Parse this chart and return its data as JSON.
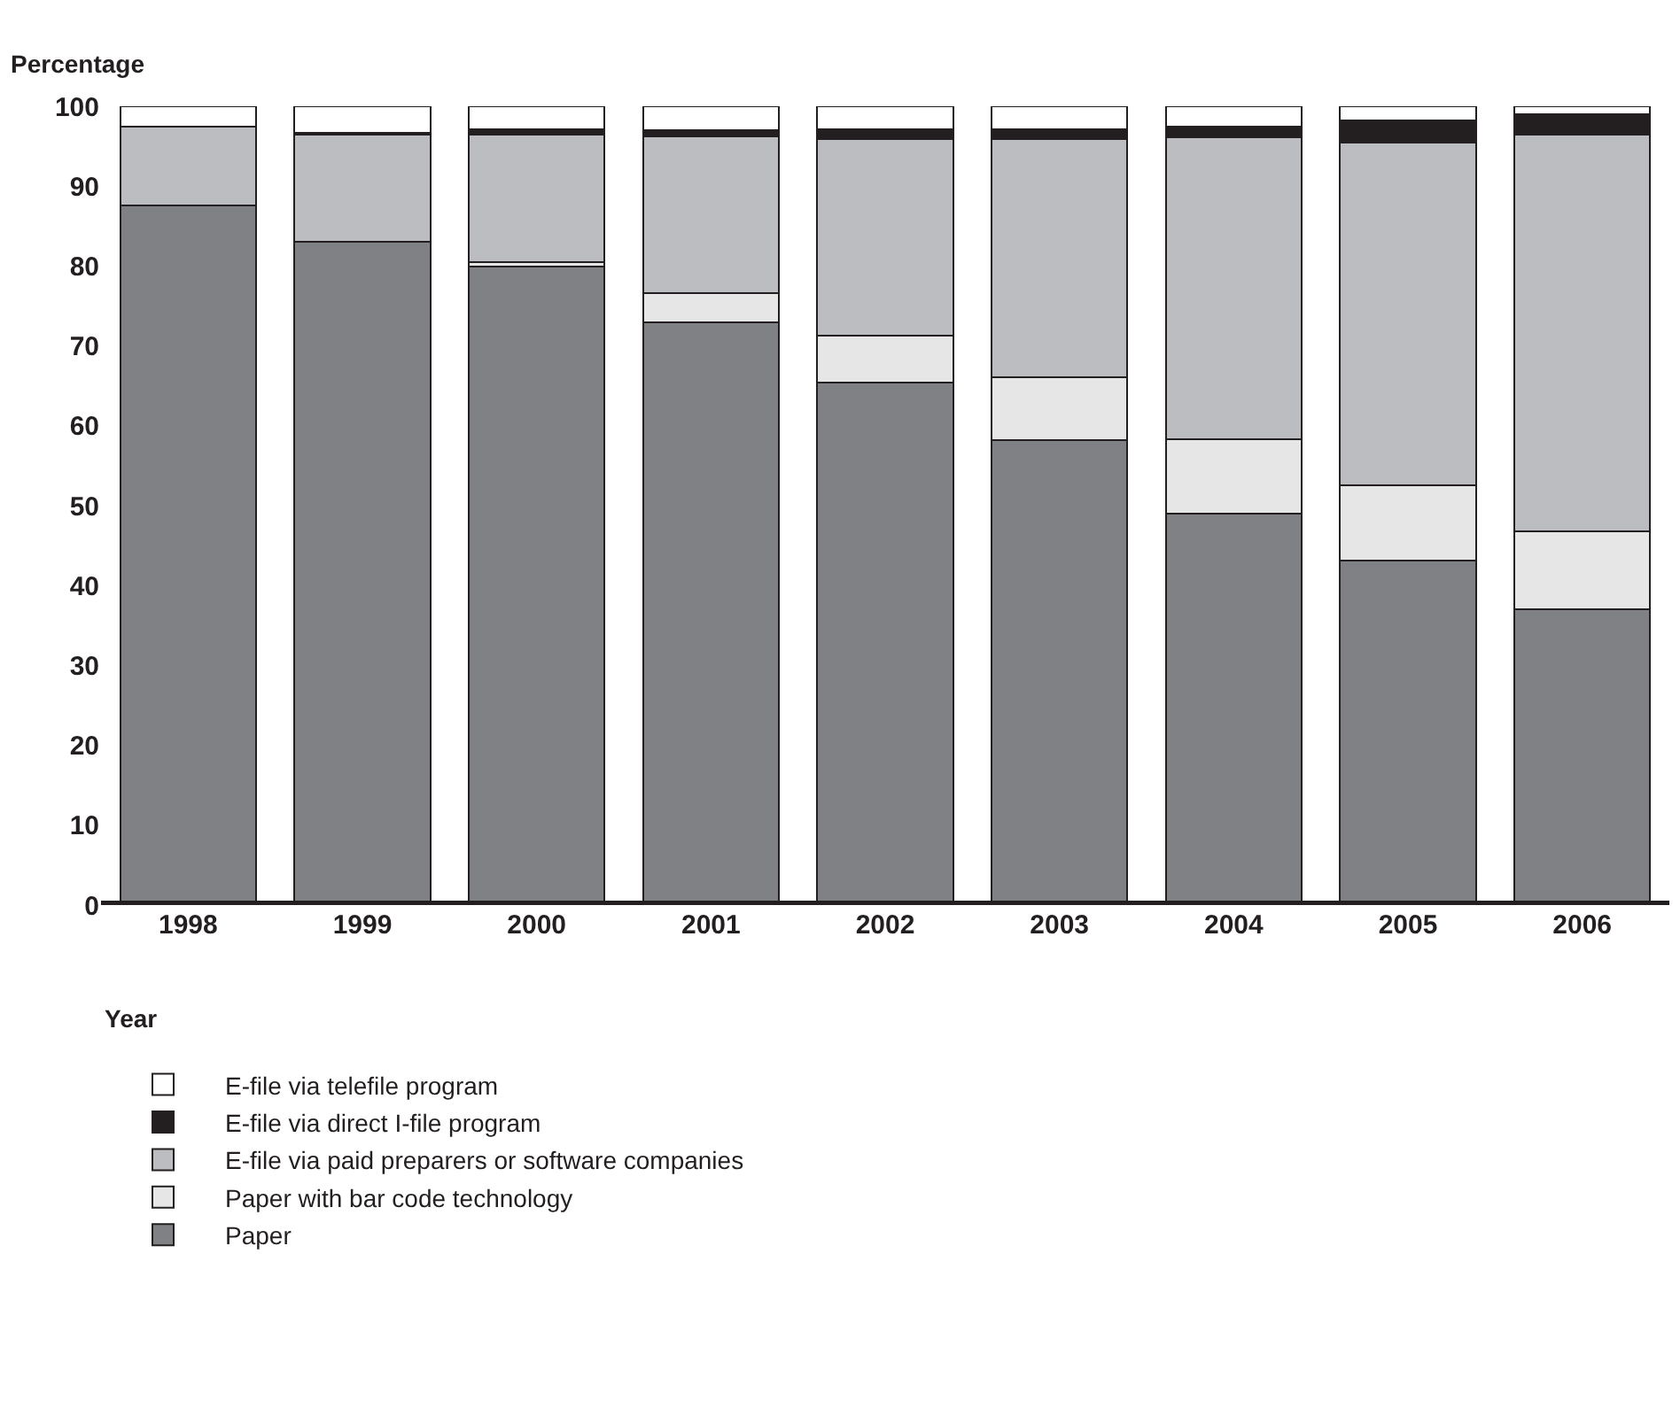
{
  "chart_data": {
    "type": "bar",
    "stacked": true,
    "xlabel": "Year",
    "ylabel": "Percentage",
    "categories": [
      "1998",
      "1999",
      "2000",
      "2001",
      "2002",
      "2003",
      "2004",
      "2005",
      "2006"
    ],
    "series": [
      {
        "name": "Paper",
        "color": "#808185",
        "values": [
          87.6,
          83.0,
          79.9,
          73.0,
          65.4,
          58.2,
          49.0,
          43.1,
          37.0
        ]
      },
      {
        "name": "Paper with bar code technology",
        "color": "#e6e6e6",
        "values": [
          0,
          0,
          0.6,
          3.6,
          5.9,
          7.9,
          9.3,
          9.4,
          9.8
        ]
      },
      {
        "name": "E-file via paid preparers or software companies",
        "color": "#bcbdc1",
        "values": [
          9.9,
          13.4,
          15.9,
          19.6,
          24.6,
          29.8,
          37.8,
          43.0,
          49.7
        ]
      },
      {
        "name": "E-file via direct I-file program",
        "color": "#231f20",
        "values": [
          0,
          0.3,
          0.7,
          0.8,
          1.2,
          1.2,
          1.4,
          2.7,
          2.5
        ]
      },
      {
        "name": "E-file via telefile program",
        "color": "#ffffff",
        "values": [
          2.5,
          3.3,
          2.9,
          3.0,
          2.9,
          2.9,
          2.5,
          1.8,
          1.0
        ]
      }
    ],
    "ylim": [
      0,
      100
    ],
    "yticks": [
      0,
      10,
      20,
      30,
      40,
      50,
      60,
      70,
      80,
      90,
      100
    ],
    "grid": false,
    "legend": "bottom left"
  }
}
